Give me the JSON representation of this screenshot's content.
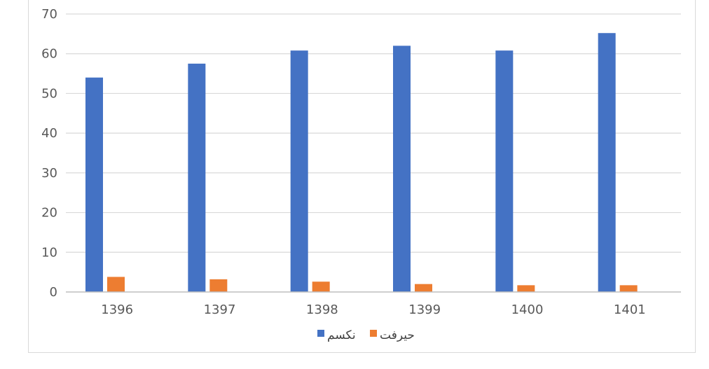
{
  "chart_data": {
    "type": "bar",
    "categories": [
      "1396",
      "1397",
      "1398",
      "1399",
      "1400",
      "1401"
    ],
    "series": [
      {
        "name": "نکسم",
        "color": "#4472C4",
        "values": [
          54.0,
          57.5,
          60.8,
          62.0,
          60.8,
          65.2
        ]
      },
      {
        "name": "حیرفت",
        "color": "#ED7D31",
        "values": [
          3.8,
          3.2,
          2.6,
          2.0,
          1.7,
          1.7
        ]
      }
    ],
    "ylim": [
      0,
      70
    ],
    "yticks": [
      "0",
      "10",
      "20",
      "30",
      "40",
      "50",
      "60",
      "70"
    ],
    "grid": true,
    "legend_position": "bottom"
  }
}
